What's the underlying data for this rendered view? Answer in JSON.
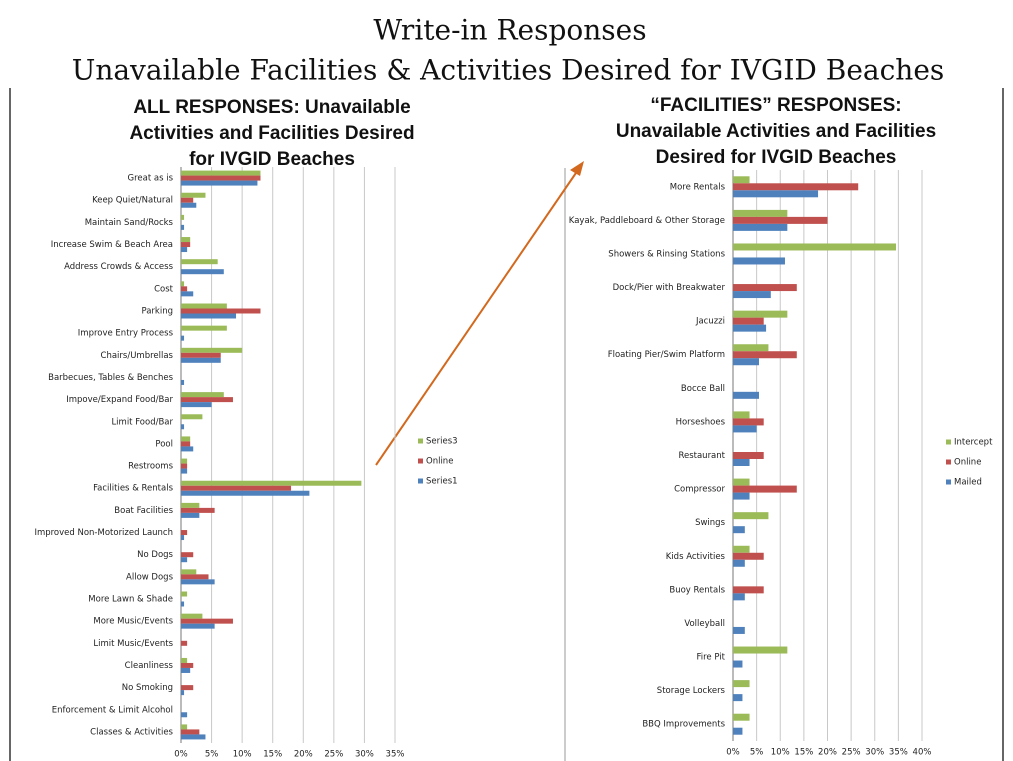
{
  "header": {
    "title": "Write-in Responses",
    "subtitle": "Unavailable Facilities & Activities Desired for IVGID Beaches"
  },
  "chart_data": [
    {
      "type": "bar",
      "orientation": "horizontal",
      "title": [
        "ALL RESPONSES: Unavailable",
        "Activities and Facilities Desired",
        "for IVGID Beaches"
      ],
      "categories": [
        "Great as is",
        "Keep Quiet/Natural",
        "Maintain Sand/Rocks",
        "Increase Swim & Beach Area",
        "Address Crowds & Access",
        "Cost",
        "Parking",
        "Improve Entry Process",
        "Chairs/Umbrellas",
        "Barbecues, Tables & Benches",
        "Impove/Expand Food/Bar",
        "Limit Food/Bar",
        "Pool",
        "Restrooms",
        "Facilities & Rentals",
        "Boat Facilities",
        "Improved Non-Motorized Launch",
        "No Dogs",
        "Allow Dogs",
        "More Lawn & Shade",
        "More Music/Events",
        "Limit Music/Events",
        "Cleanliness",
        "No Smoking",
        "Enforcement & Limit Alcohol",
        "Classes & Activities"
      ],
      "series": [
        {
          "name": "Series3",
          "color": "#9bbb59",
          "values": [
            13,
            4,
            0.5,
            1.5,
            6,
            0.5,
            7.5,
            7.5,
            10,
            0,
            7,
            3.5,
            1.5,
            1,
            29.5,
            3,
            0,
            0,
            2.5,
            1,
            3.5,
            0,
            1,
            0,
            0,
            1
          ]
        },
        {
          "name": "Online",
          "color": "#c0504d",
          "values": [
            13,
            2,
            0,
            1.5,
            0,
            1,
            13,
            0,
            6.5,
            0,
            8.5,
            0,
            1.5,
            1,
            18,
            5.5,
            1,
            2,
            4.5,
            0,
            8.5,
            1,
            2,
            2,
            0,
            3
          ]
        },
        {
          "name": "Series1",
          "color": "#4f81bd",
          "values": [
            12.5,
            2.5,
            0.5,
            1,
            7,
            2,
            9,
            0.5,
            6.5,
            0.5,
            5,
            0.5,
            2,
            1,
            21,
            3,
            0.5,
            1,
            5.5,
            0.5,
            5.5,
            0,
            1.5,
            0.5,
            1,
            4
          ]
        }
      ],
      "xlim": [
        0,
        35
      ],
      "xticks": [
        {
          "value": 0,
          "label": "0%"
        },
        {
          "value": 5,
          "label": "5%"
        },
        {
          "value": 10,
          "label": "10%"
        },
        {
          "value": 15,
          "label": "15%"
        },
        {
          "value": 20,
          "label": "20%"
        },
        {
          "value": 25,
          "label": "25%"
        },
        {
          "value": 30,
          "label": "30%"
        },
        {
          "value": 35,
          "label": "35%"
        }
      ],
      "grid": true,
      "legend": "right"
    },
    {
      "type": "bar",
      "orientation": "horizontal",
      "title": [
        "“FACILITIES” RESPONSES:",
        "Unavailable Activities and Facilities",
        "Desired for IVGID Beaches"
      ],
      "categories": [
        "More Rentals",
        "Kayak, Paddleboard & Other Storage",
        "Showers & Rinsing Stations",
        "Dock/Pier with Breakwater",
        "Jacuzzi",
        "Floating Pier/Swim Platform",
        "Bocce Ball",
        "Horseshoes",
        "Restaurant",
        "Compressor",
        "Swings",
        "Kids Activities",
        "Buoy Rentals",
        "Volleyball",
        "Fire Pit",
        "Storage Lockers",
        "BBQ Improvements"
      ],
      "series": [
        {
          "name": "Intercept",
          "color": "#9bbb59",
          "values": [
            3.5,
            11.5,
            34.5,
            0,
            11.5,
            7.5,
            0,
            3.5,
            0,
            3.5,
            7.5,
            3.5,
            0,
            0,
            11.5,
            3.5,
            3.5
          ]
        },
        {
          "name": "Online",
          "color": "#c0504d",
          "values": [
            26.5,
            20,
            0,
            13.5,
            6.5,
            13.5,
            0,
            6.5,
            6.5,
            13.5,
            0,
            6.5,
            6.5,
            0,
            0,
            0,
            0
          ]
        },
        {
          "name": "Mailed",
          "color": "#4f81bd",
          "values": [
            18,
            11.5,
            11,
            8,
            7,
            5.5,
            5.5,
            5,
            3.5,
            3.5,
            2.5,
            2.5,
            2.5,
            2.5,
            2,
            2,
            2
          ]
        }
      ],
      "xlim": [
        0,
        40
      ],
      "xticks": [
        {
          "value": 0,
          "label": "0%"
        },
        {
          "value": 5,
          "label": "5%"
        },
        {
          "value": 10,
          "label": "10%"
        },
        {
          "value": 15,
          "label": "15%"
        },
        {
          "value": 20,
          "label": "20%"
        },
        {
          "value": 25,
          "label": "25%"
        },
        {
          "value": 30,
          "label": "30%"
        },
        {
          "value": 35,
          "label": "35%"
        },
        {
          "value": 40,
          "label": "40%"
        }
      ],
      "grid": true,
      "legend": "right"
    }
  ]
}
